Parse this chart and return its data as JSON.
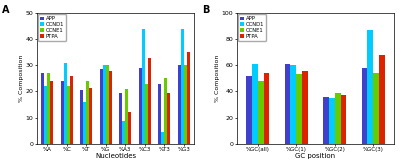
{
  "panel_A": {
    "categories": [
      "%A",
      "%C",
      "%T",
      "%G",
      "%A3",
      "%C3",
      "%T3",
      "%G3"
    ],
    "series": {
      "APP": [
        27,
        24,
        20.5,
        28.5,
        19.5,
        29,
        23,
        30
      ],
      "CCND1": [
        22,
        31,
        16,
        30,
        8.5,
        44,
        4.5,
        44
      ],
      "CCNE1": [
        27,
        22,
        24,
        30,
        21,
        23,
        25,
        30
      ],
      "PTPA": [
        24,
        26,
        21.5,
        28,
        12,
        33,
        19.5,
        35
      ]
    },
    "ylabel": "% Composition",
    "xlabel": "Nucleotides",
    "ylim": [
      0,
      50
    ],
    "yticks": [
      0,
      10,
      20,
      30,
      40,
      50
    ],
    "label": "A"
  },
  "panel_B": {
    "categories": [
      "%GC(all)",
      "%GC(1)",
      "%GC(2)",
      "%GC(3)"
    ],
    "series": {
      "APP": [
        52,
        61,
        36,
        58
      ],
      "CCND1": [
        61,
        60,
        35,
        87
      ],
      "CCNE1": [
        48,
        53,
        39,
        54
      ],
      "PTPA": [
        54,
        56,
        37,
        68
      ]
    },
    "ylabel": "% Composition",
    "xlabel": "GC position",
    "ylim": [
      0,
      100
    ],
    "yticks": [
      0,
      20,
      40,
      60,
      80,
      100
    ],
    "label": "B"
  },
  "colors": {
    "APP": "#4040cc",
    "CCND1": "#00ccff",
    "CCNE1": "#66cc00",
    "PTPA": "#dd2200"
  },
  "legend_order": [
    "APP",
    "CCND1",
    "CCNE1",
    "PTPA"
  ]
}
